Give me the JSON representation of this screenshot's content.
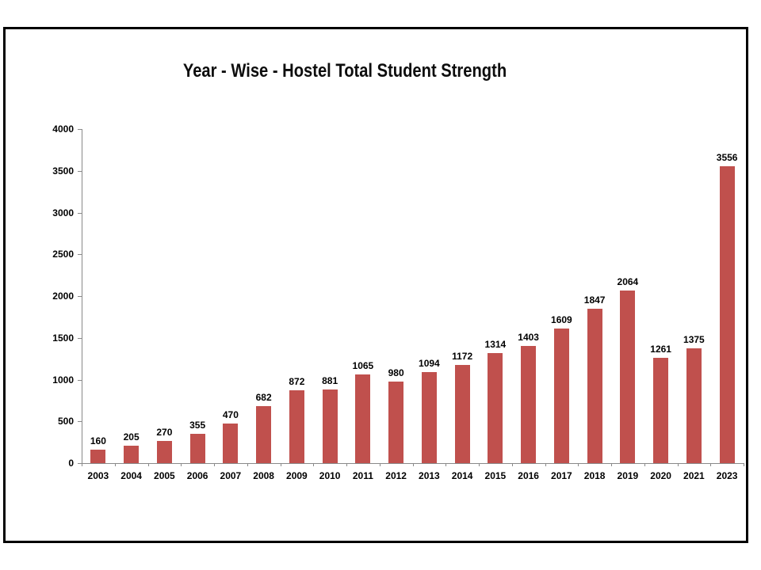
{
  "chart_data": {
    "type": "bar",
    "title": "Year - Wise - Hostel Total Student Strength",
    "categories": [
      "2003",
      "2004",
      "2005",
      "2006",
      "2007",
      "2008",
      "2009",
      "2010",
      "2011",
      "2012",
      "2013",
      "2014",
      "2015",
      "2016",
      "2017",
      "2018",
      "2019",
      "2020",
      "2021",
      "2023"
    ],
    "values": [
      160,
      205,
      270,
      355,
      470,
      682,
      872,
      881,
      1065,
      980,
      1094,
      1172,
      1314,
      1403,
      1609,
      1847,
      2064,
      1261,
      1375,
      3556
    ],
    "series_name": "Hostel Total Student Strength",
    "xlabel": "",
    "ylabel": "",
    "ylim": [
      0,
      4000
    ],
    "yticks": [
      0,
      500,
      1000,
      1500,
      2000,
      2500,
      3000,
      3500,
      4000
    ],
    "grid": false,
    "legend_position": "none",
    "data_labels": true,
    "bar_color": "#C0504D",
    "axis_color": "#898989",
    "text_color": "#000000",
    "frame_border_color": "#000000",
    "background_color": "#FFFFFF"
  }
}
